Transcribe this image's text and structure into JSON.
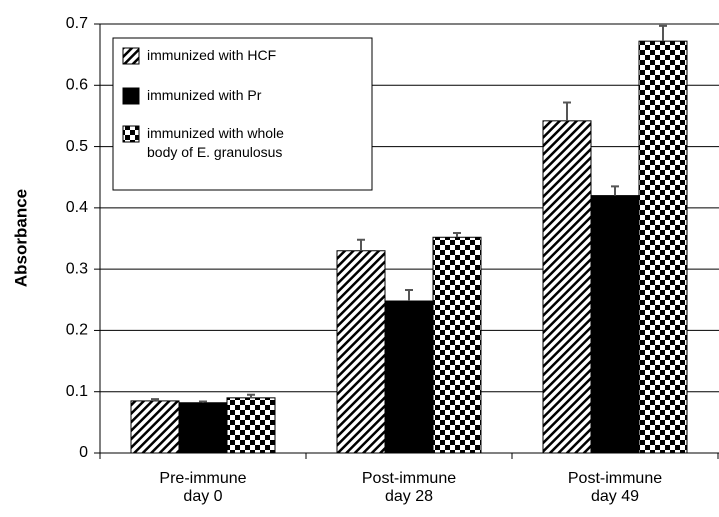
{
  "chart_data": {
    "type": "bar",
    "y_label": "Absorbance",
    "categories": [
      "Pre-immune\nday 0",
      "Post-immune\nday 28",
      "Post-immune\nday 49"
    ],
    "series": [
      {
        "name": "immunized with HCF",
        "color": "#000000",
        "pattern": "hatch",
        "values": [
          0.085,
          0.33,
          0.542
        ],
        "errors": [
          0.003,
          0.018,
          0.03
        ]
      },
      {
        "name": "immunized with Pr",
        "color": "#000000",
        "pattern": "solid",
        "values": [
          0.082,
          0.248,
          0.42
        ],
        "errors": [
          0.002,
          0.018,
          0.015
        ]
      },
      {
        "name": "immunized with whole\nbody of  E. granulosus",
        "color": "#000000",
        "pattern": "checker",
        "values": [
          0.09,
          0.352,
          0.672
        ],
        "errors": [
          0.005,
          0.007,
          0.025
        ]
      }
    ],
    "ylim": [
      0,
      0.7
    ],
    "yticks": [
      0,
      0.1,
      0.2,
      0.3,
      0.4,
      0.5,
      0.6,
      0.7
    ],
    "grid": true,
    "legend": "upper left"
  }
}
